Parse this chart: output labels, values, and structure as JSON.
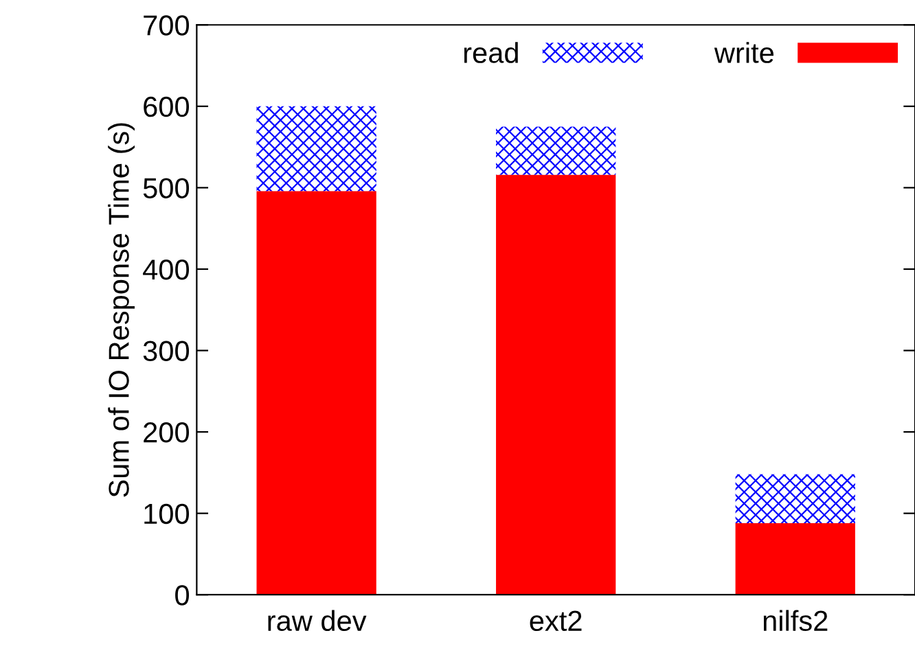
{
  "chart_data": {
    "type": "bar",
    "stacked": true,
    "ylabel": "Sum of IO Response Time (s)",
    "categories": [
      "raw dev",
      "ext2",
      "nilfs2"
    ],
    "series": [
      {
        "name": "write",
        "color": "#ff0000",
        "values": [
          496,
          516,
          88
        ]
      },
      {
        "name": "read",
        "color": "#0000ff",
        "values": [
          104,
          59,
          60
        ]
      }
    ],
    "ylim": [
      0,
      700
    ],
    "yticks": [
      0,
      100,
      200,
      300,
      400,
      500,
      600,
      700
    ],
    "legend": "top right",
    "grid": false
  }
}
